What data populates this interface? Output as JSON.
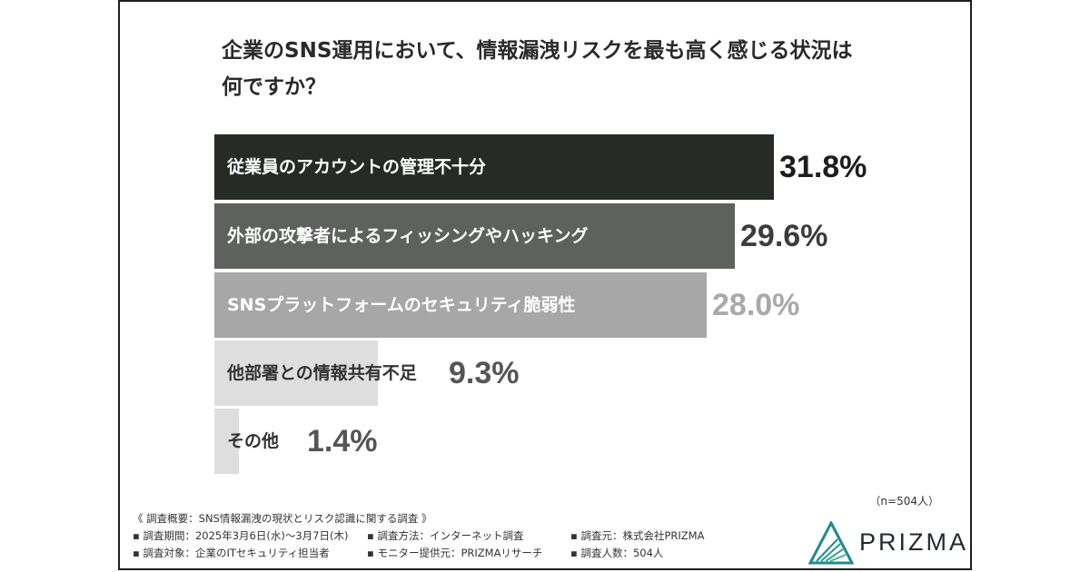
{
  "title_line1": "企業のSNS運用において、情報漏洩リスクを最も高く感じる状況は",
  "title_line2": "何ですか？",
  "chart_data": {
    "type": "bar",
    "orientation": "horizontal",
    "categories": [
      "従業員のアカウントの管理不十分",
      "外部の攻撃者によるフィッシングやハッキング",
      "SNSプラットフォームのセキュリティ脆弱性",
      "他部署との情報共有不足",
      "その他"
    ],
    "values": [
      31.8,
      29.6,
      28.0,
      9.3,
      1.4
    ],
    "value_labels": [
      "31.8%",
      "29.6%",
      "28.0%",
      "9.3%",
      "1.4%"
    ],
    "bar_colors": [
      "#262b26",
      "#5f615f",
      "#a7a7a7",
      "#dedede",
      "#dedede"
    ],
    "label_colors": [
      "#ffffff",
      "#ffffff",
      "#ffffff",
      "#333333",
      "#333333"
    ],
    "pct_colors": [
      "#1d1d1d",
      "#3c3c3c",
      "#a9a9a9",
      "#555555",
      "#555555"
    ]
  },
  "sample_size": "（n=504人）",
  "survey": {
    "heading": "《 調査概要：SNS情報漏洩の現状とリスク認識に関する調査 》",
    "period": "▪ 調査期間：2025年3月6日(水)〜3月7日(木)",
    "method": "▪ 調査方法：インターネット調査",
    "source": "▪ 調査元：株式会社PRIZMA",
    "target": "▪ 調査対象：企業のITセキュリティ担当者",
    "monitor": "▪ モニター提供元：PRIZMAリサーチ",
    "count": "▪ 調査人数：504人"
  },
  "logo": {
    "text": "PRIZMA",
    "color": "#1f8a8f"
  }
}
